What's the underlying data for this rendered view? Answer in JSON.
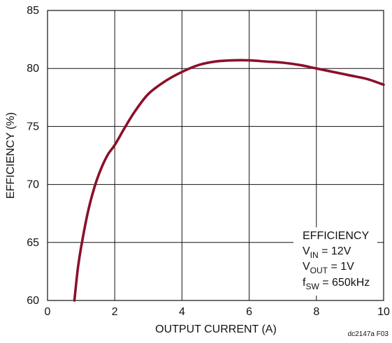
{
  "chart_data": {
    "type": "line",
    "title": "",
    "xlabel": "OUTPUT CURRENT (A)",
    "ylabel": "EFFICIENCY (%)",
    "xlim": [
      0,
      10
    ],
    "ylim": [
      60,
      85
    ],
    "x_ticks": [
      "0",
      "2",
      "4",
      "6",
      "8",
      "10"
    ],
    "y_ticks": [
      "60",
      "65",
      "70",
      "75",
      "80",
      "85"
    ],
    "grid": true,
    "series": [
      {
        "x": [
          0.8,
          0.9,
          1.0,
          1.2,
          1.4,
          1.6,
          1.8,
          2.0,
          2.3,
          2.6,
          3.0,
          3.5,
          4.0,
          4.5,
          5.0,
          5.5,
          6.0,
          6.5,
          7.0,
          7.5,
          8.0,
          8.5,
          9.0,
          9.5,
          10.0
        ],
        "values": [
          60.0,
          62.7,
          64.6,
          67.6,
          69.8,
          71.4,
          72.6,
          73.4,
          74.9,
          76.3,
          77.8,
          78.9,
          79.7,
          80.3,
          80.6,
          80.7,
          80.7,
          80.6,
          80.5,
          80.3,
          80.0,
          79.7,
          79.4,
          79.1,
          78.6
        ],
        "color": "#8b1029"
      }
    ],
    "legend": {
      "position": "bottom-right",
      "lines": [
        {
          "main": "EFFICIENCY",
          "sub": "",
          "tail": ""
        },
        {
          "main": "V",
          "sub": "IN",
          "tail": " = 12V"
        },
        {
          "main": "V",
          "sub": "OUT",
          "tail": " = 1V"
        },
        {
          "main": "f",
          "sub": "SW",
          "tail": " = 650kHz"
        }
      ]
    },
    "figure_code": "dc2147a F03"
  }
}
